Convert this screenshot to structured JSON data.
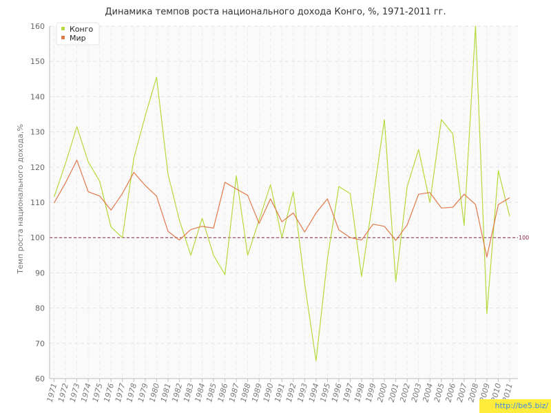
{
  "chart_data": {
    "type": "line",
    "title": "Динамика темпов роста национального дохода Конго, %, 1971-2011 гг.",
    "xlabel": "",
    "ylabel": "Темп роста национального дохода,%",
    "ylim": [
      60,
      160
    ],
    "yticks": [
      60,
      70,
      80,
      90,
      100,
      110,
      120,
      130,
      140,
      150,
      160
    ],
    "x": [
      1971,
      1972,
      1973,
      1974,
      1975,
      1976,
      1977,
      1978,
      1979,
      1980,
      1981,
      1982,
      1983,
      1984,
      1985,
      1986,
      1987,
      1988,
      1989,
      1990,
      1991,
      1992,
      1993,
      1994,
      1995,
      1996,
      1997,
      1998,
      1999,
      2000,
      2001,
      2002,
      2003,
      2004,
      2005,
      2006,
      2007,
      2008,
      2009,
      2010,
      2011
    ],
    "x_tick_labels": [
      "1971",
      "1972",
      "1973",
      "1974",
      "1975",
      "1976",
      "1977",
      "1978",
      "1979",
      "1980",
      "1981",
      "1982",
      "1983",
      "1984",
      "1985",
      "1986",
      "1987",
      "1988",
      "1989",
      "1990",
      "1991",
      "1992",
      "1993",
      "1994",
      "1995",
      "1996",
      "1997",
      "1998",
      "1999",
      "2000",
      "2001",
      "2002",
      "2003",
      "2004",
      "2005",
      "2006",
      "2007",
      "2008",
      "2009",
      "2010",
      "2011"
    ],
    "grid": true,
    "legend_position": "top-left",
    "series": [
      {
        "name": "Конго",
        "color": "#b5d93a",
        "values": [
          111.5,
          121,
          131.5,
          121.5,
          116,
          103,
          100,
          122.5,
          134.5,
          145.5,
          118,
          105,
          95,
          105.5,
          95,
          89.5,
          117.5,
          95,
          105,
          115,
          100,
          113,
          87,
          65,
          94,
          114.5,
          112.5,
          89,
          111,
          133.5,
          87.5,
          114.5,
          125,
          110,
          133.5,
          129.5,
          103.5,
          160,
          78.5,
          119,
          106
        ]
      },
      {
        "name": "Мир",
        "color": "#e07848",
        "values": [
          109.8,
          115.5,
          122,
          113,
          111.8,
          107.8,
          112.5,
          118.5,
          114.8,
          111.8,
          101.8,
          99.3,
          102.3,
          103.2,
          102.7,
          115.7,
          113.8,
          112,
          104,
          111,
          104.5,
          107,
          101.6,
          107,
          111,
          102.2,
          100,
          99.3,
          103.8,
          103.2,
          99.2,
          103.6,
          112.3,
          112.8,
          108.4,
          108.6,
          112.3,
          109.4,
          94.5,
          109.4,
          111.3
        ]
      }
    ],
    "reference_line": {
      "value": 100,
      "label": "100",
      "color": "#8a2040"
    }
  },
  "watermark": "http://be5.biz/"
}
